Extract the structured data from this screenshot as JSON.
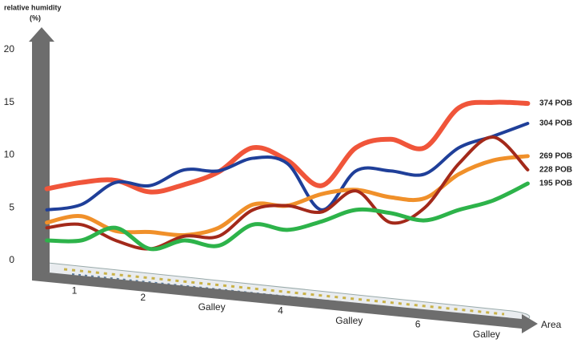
{
  "chart_data": {
    "type": "line",
    "ylabel": "relative humidity",
    "ylabel_unit": "(%)",
    "xlabel": "Area",
    "ylim": [
      0,
      20
    ],
    "yticks": [
      0,
      5,
      10,
      15,
      20
    ],
    "xlim": [
      0.5,
      7.7
    ],
    "xticks": [
      1,
      2,
      {
        "value": 3,
        "label": "Galley"
      },
      4,
      {
        "value": 5,
        "label": "Galley"
      },
      6,
      {
        "value": 7,
        "label": "Galley"
      }
    ],
    "x": [
      0.6,
      1.1,
      1.6,
      2.1,
      2.6,
      3.1,
      3.6,
      4.1,
      4.6,
      5.1,
      5.6,
      6.1,
      6.6,
      7.1,
      7.6
    ],
    "series": [
      {
        "name": "374 POB",
        "color": "#f0553a",
        "width": 6,
        "values": [
          6.8,
          7.4,
          7.6,
          6.5,
          7.2,
          8.4,
          10.7,
          9.5,
          7.1,
          10.7,
          11.5,
          10.7,
          14.5,
          15,
          14.9
        ]
      },
      {
        "name": "304 POB",
        "color": "#1f3f99",
        "width": 4,
        "values": [
          4.8,
          5.3,
          7.4,
          7.1,
          8.6,
          8.5,
          9.7,
          9.2,
          4.8,
          8.5,
          8.5,
          8.2,
          10.7,
          11.8,
          13
        ]
      },
      {
        "name": "269 POB",
        "color": "#f0902a",
        "width": 5,
        "values": [
          3.6,
          4.2,
          2.8,
          2.7,
          2.4,
          3.1,
          5.3,
          5.2,
          6.3,
          6.7,
          6,
          5.9,
          8.2,
          9.5,
          9.9
        ]
      },
      {
        "name": "228 POB",
        "color": "#a3291a",
        "width": 4,
        "values": [
          3.1,
          3.4,
          1.9,
          1.1,
          2.3,
          2.3,
          4.8,
          5.2,
          4.6,
          6.6,
          3.6,
          5,
          9.2,
          11.7,
          8.6
        ]
      },
      {
        "name": "195 POB",
        "color": "#2db34a",
        "width": 5,
        "values": [
          1.9,
          1.9,
          3.1,
          1.1,
          1.9,
          1.4,
          3.4,
          2.9,
          3.7,
          4.8,
          4.5,
          3.8,
          4.8,
          5.7,
          7.3
        ]
      }
    ]
  }
}
